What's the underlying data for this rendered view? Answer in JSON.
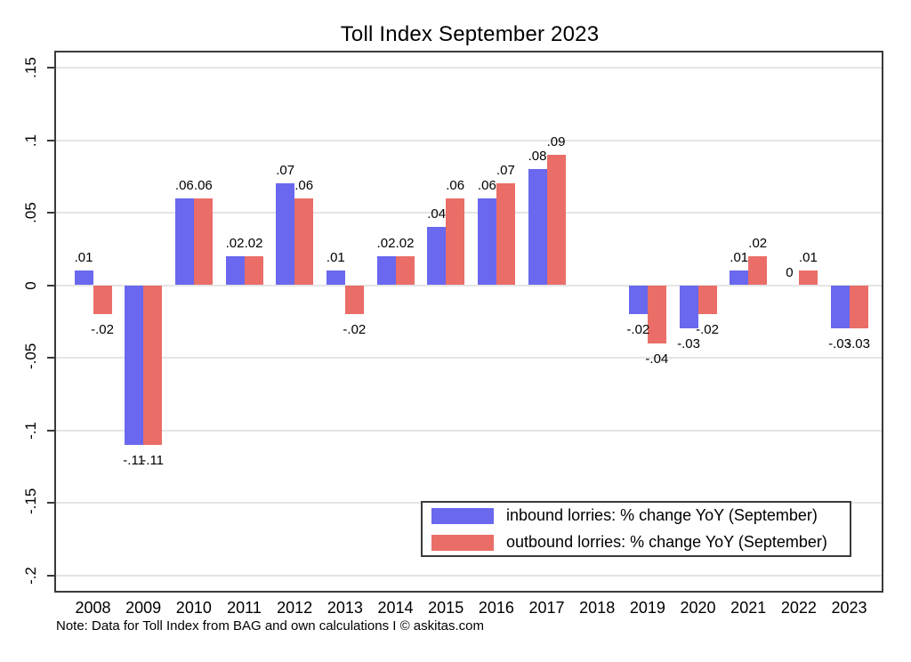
{
  "title": "Toll Index September 2023",
  "note": "Note: Data for Toll Index from BAG and own calculations I © askitas.com",
  "colors": {
    "inbound": "#6968ee",
    "outbound": "#ea6d68",
    "grid": "#e4e4e4",
    "axis": "#3a3a3a",
    "text": "#000000",
    "background": "#ffffff"
  },
  "legend": {
    "items": [
      {
        "label": "inbound lorries: % change YoY (September)",
        "color_key": "inbound"
      },
      {
        "label": "outbound lorries: % change YoY (September)",
        "color_key": "outbound"
      }
    ]
  },
  "chart_data": {
    "type": "bar",
    "title": "Toll Index September 2023",
    "xlabel": "",
    "ylabel": "",
    "categories": [
      "2008",
      "2009",
      "2010",
      "2011",
      "2012",
      "2013",
      "2014",
      "2015",
      "2016",
      "2017",
      "2018",
      "2019",
      "2020",
      "2021",
      "2022",
      "2023"
    ],
    "series": [
      {
        "name": "inbound lorries: % change YoY (September)",
        "color_key": "inbound",
        "values": [
          0.01,
          -0.11,
          0.06,
          0.02,
          0.07,
          0.01,
          0.02,
          0.04,
          0.06,
          0.08,
          null,
          -0.02,
          -0.03,
          0.01,
          0,
          -0.03
        ],
        "labels": [
          ".01",
          "-.11",
          ".06",
          ".02",
          ".07",
          ".01",
          ".02",
          ".04",
          ".06",
          ".08",
          "",
          "-.02",
          "-.03",
          ".01",
          "0",
          "-.03"
        ]
      },
      {
        "name": "outbound lorries: % change YoY (September)",
        "color_key": "outbound",
        "values": [
          -0.02,
          -0.11,
          0.06,
          0.02,
          0.06,
          -0.02,
          0.02,
          0.06,
          0.07,
          0.09,
          null,
          -0.04,
          -0.02,
          0.02,
          0.01,
          -0.03
        ],
        "labels": [
          "-.02",
          "-.11",
          ".06",
          ".02",
          ".06",
          "-.02",
          ".02",
          ".06",
          ".07",
          ".09",
          "",
          "-.04",
          "-.02",
          ".02",
          ".01",
          "-.03"
        ]
      }
    ],
    "yticks": [
      0.15,
      0.1,
      0.05,
      0,
      -0.05,
      -0.1,
      -0.15,
      -0.2
    ],
    "ytick_labels": [
      ".15",
      ".1",
      ".05",
      "0",
      "-.05",
      "-.1",
      "-.15",
      "-.2"
    ],
    "ylim": [
      -0.212,
      0.162
    ],
    "grid": true,
    "grid_axis": "y",
    "legend_position": "inside-lower-right"
  }
}
